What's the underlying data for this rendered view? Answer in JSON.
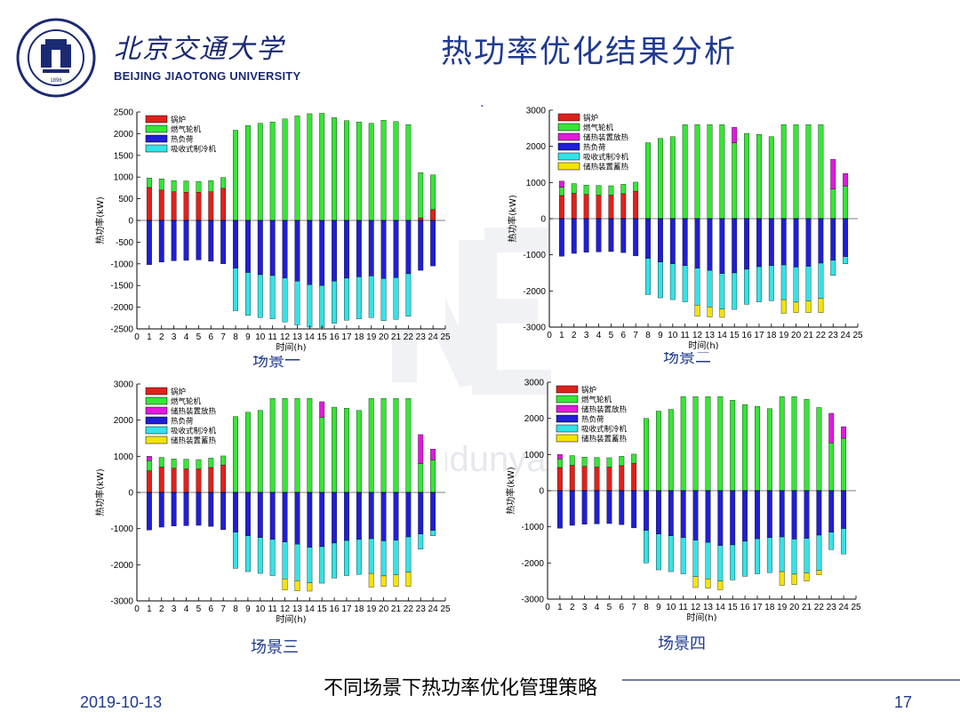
{
  "header": {
    "university_cn": "北京交通大学",
    "university_en": "BEIJING JIAOTONG UNIVERSITY",
    "logo_year": "1896",
    "title": "热功率优化结果分析",
    "dot": "."
  },
  "watermark": {
    "text": "www.bjudunyan.com"
  },
  "footer": {
    "caption": "不同场景下热功率优化管理策略",
    "date": "2019-10-13",
    "page": "17"
  },
  "colors": {
    "boiler": "#e0211b",
    "gas_turbine": "#36e636",
    "storage_release": "#e01adf",
    "heat_load": "#1f1fd4",
    "absorption_chiller": "#33e3e8",
    "storage_charge": "#f5e400",
    "title_blue": "#1f3a8f"
  },
  "chart_data": [
    {
      "id": "scenario1",
      "type": "bar",
      "caption": "场景一",
      "xlabel": "时间(h)",
      "ylabel": "热功率(kW)",
      "xlim": [
        0,
        25
      ],
      "ylim": [
        -2500,
        2500
      ],
      "yticks": [
        -2500,
        -2000,
        -1500,
        -1000,
        -500,
        0,
        500,
        1000,
        1500,
        2000,
        2500
      ],
      "xticks": [
        0,
        1,
        2,
        3,
        4,
        5,
        6,
        7,
        8,
        9,
        10,
        11,
        12,
        13,
        14,
        15,
        16,
        17,
        18,
        19,
        20,
        21,
        22,
        23,
        24,
        25
      ],
      "legend": [
        "锅炉",
        "燃气轮机",
        "热负荷",
        "吸收式制冷机"
      ],
      "legend_keys": [
        "boiler",
        "gas_turbine",
        "heat_load",
        "absorption_chiller"
      ],
      "hours": [
        1,
        2,
        3,
        4,
        5,
        6,
        7,
        8,
        9,
        10,
        11,
        12,
        13,
        14,
        15,
        16,
        17,
        18,
        19,
        20,
        21,
        22,
        23,
        24
      ],
      "series": [
        {
          "name": "锅炉",
          "key": "boiler",
          "sign": 1,
          "values": [
            760,
            700,
            660,
            650,
            650,
            660,
            740,
            0,
            0,
            0,
            0,
            0,
            0,
            0,
            0,
            0,
            0,
            0,
            0,
            0,
            0,
            0,
            60,
            250
          ]
        },
        {
          "name": "燃气轮机",
          "key": "gas_turbine",
          "sign": 1,
          "values": [
            220,
            260,
            260,
            260,
            250,
            260,
            250,
            2080,
            2190,
            2240,
            2270,
            2340,
            2410,
            2460,
            2470,
            2370,
            2300,
            2270,
            2240,
            2310,
            2280,
            2210,
            1040,
            800
          ]
        },
        {
          "name": "热负荷",
          "key": "heat_load",
          "sign": -1,
          "values": [
            1020,
            960,
            930,
            920,
            910,
            940,
            1000,
            1100,
            1200,
            1250,
            1270,
            1330,
            1400,
            1480,
            1500,
            1400,
            1330,
            1300,
            1280,
            1340,
            1320,
            1230,
            1150,
            1050
          ]
        },
        {
          "name": "吸收式制冷机",
          "key": "absorption_chiller",
          "sign": -1,
          "values": [
            0,
            0,
            0,
            0,
            0,
            0,
            0,
            980,
            990,
            990,
            1000,
            1010,
            1010,
            980,
            970,
            970,
            970,
            970,
            960,
            970,
            960,
            980,
            0,
            0
          ]
        }
      ]
    },
    {
      "id": "scenario2",
      "type": "bar",
      "caption": "场景二",
      "xlabel": "时间(h)",
      "ylabel": "热功率(kW)",
      "xlim": [
        0,
        25
      ],
      "ylim": [
        -3000,
        3000
      ],
      "yticks": [
        -3000,
        -2000,
        -1000,
        0,
        1000,
        2000,
        3000
      ],
      "xticks": [
        0,
        1,
        2,
        3,
        4,
        5,
        6,
        7,
        8,
        9,
        10,
        11,
        12,
        13,
        14,
        15,
        16,
        17,
        18,
        19,
        20,
        21,
        22,
        23,
        24,
        25
      ],
      "legend": [
        "锅炉",
        "燃气轮机",
        "储热装置放热",
        "热负荷",
        "吸收式制冷机",
        "储热装置蓄热"
      ],
      "legend_keys": [
        "boiler",
        "gas_turbine",
        "storage_release",
        "heat_load",
        "absorption_chiller",
        "storage_charge"
      ],
      "hours": [
        1,
        2,
        3,
        4,
        5,
        6,
        7,
        8,
        9,
        10,
        11,
        12,
        13,
        14,
        15,
        16,
        17,
        18,
        19,
        20,
        21,
        22,
        23,
        24
      ],
      "series": [
        {
          "name": "锅炉",
          "key": "boiler",
          "sign": 1,
          "values": [
            640,
            700,
            670,
            650,
            650,
            690,
            760,
            0,
            0,
            0,
            0,
            0,
            0,
            0,
            0,
            0,
            0,
            0,
            0,
            0,
            0,
            0,
            0,
            0
          ]
        },
        {
          "name": "燃气轮机",
          "key": "gas_turbine",
          "sign": 1,
          "values": [
            230,
            270,
            260,
            270,
            260,
            260,
            250,
            2100,
            2220,
            2270,
            2600,
            2600,
            2600,
            2600,
            2100,
            2360,
            2330,
            2270,
            2600,
            2600,
            2600,
            2600,
            820,
            900
          ]
        },
        {
          "name": "储热装置放热",
          "key": "storage_release",
          "sign": 1,
          "values": [
            170,
            0,
            0,
            0,
            0,
            0,
            0,
            0,
            0,
            0,
            0,
            0,
            0,
            0,
            430,
            0,
            0,
            0,
            0,
            0,
            0,
            0,
            820,
            350
          ]
        },
        {
          "name": "热负荷",
          "key": "heat_load",
          "sign": -1,
          "values": [
            1040,
            960,
            930,
            920,
            910,
            940,
            1030,
            1100,
            1200,
            1250,
            1300,
            1370,
            1430,
            1520,
            1500,
            1400,
            1330,
            1300,
            1280,
            1340,
            1320,
            1230,
            1150,
            1050
          ]
        },
        {
          "name": "吸收式制冷机",
          "key": "absorption_chiller",
          "sign": -1,
          "values": [
            0,
            0,
            0,
            0,
            0,
            0,
            0,
            1000,
            990,
            990,
            1000,
            1020,
            1010,
            980,
            1010,
            970,
            970,
            970,
            960,
            970,
            960,
            980,
            420,
            200
          ]
        },
        {
          "name": "储热装置蓄热",
          "key": "storage_charge",
          "sign": -1,
          "values": [
            0,
            0,
            0,
            0,
            0,
            0,
            0,
            0,
            0,
            0,
            0,
            310,
            280,
            230,
            0,
            0,
            0,
            0,
            380,
            290,
            320,
            390,
            0,
            0
          ]
        }
      ]
    },
    {
      "id": "scenario3",
      "type": "bar",
      "caption": "场景三",
      "xlabel": "时间(h)",
      "ylabel": "热功率(kW)",
      "xlim": [
        0,
        25
      ],
      "ylim": [
        -3000,
        3000
      ],
      "yticks": [
        -3000,
        -2000,
        -1000,
        0,
        1000,
        2000,
        3000
      ],
      "xticks": [
        0,
        1,
        2,
        3,
        4,
        5,
        6,
        7,
        8,
        9,
        10,
        11,
        12,
        13,
        14,
        15,
        16,
        17,
        18,
        19,
        20,
        21,
        22,
        23,
        24,
        25
      ],
      "legend": [
        "锅炉",
        "燃气轮机",
        "储热装置放热",
        "热负荷",
        "吸收式制冷机",
        "储热装置蓄热"
      ],
      "legend_keys": [
        "boiler",
        "gas_turbine",
        "storage_release",
        "heat_load",
        "absorption_chiller",
        "storage_charge"
      ],
      "hours": [
        1,
        2,
        3,
        4,
        5,
        6,
        7,
        8,
        9,
        10,
        11,
        12,
        13,
        14,
        15,
        16,
        17,
        18,
        19,
        20,
        21,
        22,
        23,
        24
      ],
      "series": [
        {
          "name": "锅炉",
          "key": "boiler",
          "sign": 1,
          "values": [
            600,
            700,
            670,
            650,
            650,
            690,
            760,
            0,
            0,
            0,
            0,
            0,
            0,
            0,
            0,
            0,
            0,
            0,
            0,
            0,
            0,
            0,
            0,
            0
          ]
        },
        {
          "name": "燃气轮机",
          "key": "gas_turbine",
          "sign": 1,
          "values": [
            280,
            270,
            260,
            270,
            260,
            260,
            250,
            2100,
            2220,
            2270,
            2600,
            2600,
            2600,
            2600,
            2080,
            2360,
            2330,
            2270,
            2600,
            2600,
            2600,
            2600,
            800,
            900
          ]
        },
        {
          "name": "储热装置放热",
          "key": "storage_release",
          "sign": 1,
          "values": [
            120,
            0,
            0,
            0,
            0,
            0,
            0,
            0,
            0,
            0,
            0,
            0,
            0,
            0,
            430,
            0,
            0,
            0,
            0,
            0,
            0,
            0,
            800,
            300
          ]
        },
        {
          "name": "热负荷",
          "key": "heat_load",
          "sign": -1,
          "values": [
            1040,
            960,
            930,
            920,
            910,
            940,
            1030,
            1100,
            1200,
            1250,
            1300,
            1370,
            1430,
            1520,
            1500,
            1400,
            1330,
            1300,
            1280,
            1340,
            1320,
            1230,
            1150,
            1050
          ]
        },
        {
          "name": "吸收式制冷机",
          "key": "absorption_chiller",
          "sign": -1,
          "values": [
            0,
            0,
            0,
            0,
            0,
            0,
            0,
            1000,
            990,
            990,
            1000,
            1020,
            1010,
            980,
            1010,
            970,
            970,
            970,
            960,
            970,
            960,
            980,
            420,
            150
          ]
        },
        {
          "name": "储热装置蓄热",
          "key": "storage_charge",
          "sign": -1,
          "values": [
            0,
            0,
            0,
            0,
            0,
            0,
            0,
            0,
            0,
            0,
            0,
            310,
            280,
            230,
            0,
            0,
            0,
            0,
            380,
            290,
            320,
            390,
            0,
            0
          ]
        }
      ]
    },
    {
      "id": "scenario4",
      "type": "bar",
      "caption": "场景四",
      "xlabel": "时间(h)",
      "ylabel": "热功率(kW)",
      "xlim": [
        0,
        25
      ],
      "ylim": [
        -3000,
        3000
      ],
      "yticks": [
        -3000,
        -2000,
        -1000,
        0,
        1000,
        2000,
        3000
      ],
      "xticks": [
        0,
        1,
        2,
        3,
        4,
        5,
        6,
        7,
        8,
        9,
        10,
        11,
        12,
        13,
        14,
        15,
        16,
        17,
        18,
        19,
        20,
        21,
        22,
        23,
        24,
        25
      ],
      "legend": [
        "锅炉",
        "燃气轮机",
        "储热装置放热",
        "热负荷",
        "吸收式制冷机",
        "储热装置蓄热"
      ],
      "legend_keys": [
        "boiler",
        "gas_turbine",
        "storage_release",
        "heat_load",
        "absorption_chiller",
        "storage_charge"
      ],
      "hours": [
        1,
        2,
        3,
        4,
        5,
        6,
        7,
        8,
        9,
        10,
        11,
        12,
        13,
        14,
        15,
        16,
        17,
        18,
        19,
        20,
        21,
        22,
        23,
        24
      ],
      "series": [
        {
          "name": "锅炉",
          "key": "boiler",
          "sign": 1,
          "values": [
            640,
            700,
            670,
            650,
            650,
            690,
            760,
            0,
            0,
            0,
            0,
            0,
            0,
            0,
            0,
            0,
            0,
            0,
            0,
            0,
            0,
            0,
            0,
            0
          ]
        },
        {
          "name": "燃气轮机",
          "key": "gas_turbine",
          "sign": 1,
          "values": [
            240,
            270,
            260,
            270,
            260,
            260,
            250,
            2000,
            2200,
            2250,
            2600,
            2600,
            2600,
            2600,
            2500,
            2380,
            2330,
            2270,
            2600,
            2600,
            2530,
            2300,
            1320,
            1450
          ]
        },
        {
          "name": "储热装置放热",
          "key": "storage_release",
          "sign": 1,
          "values": [
            120,
            0,
            0,
            0,
            0,
            0,
            0,
            0,
            0,
            0,
            0,
            0,
            0,
            0,
            0,
            0,
            0,
            0,
            0,
            0,
            0,
            0,
            820,
            320
          ]
        },
        {
          "name": "热负荷",
          "key": "heat_load",
          "sign": -1,
          "values": [
            1040,
            960,
            930,
            920,
            910,
            940,
            1030,
            1100,
            1200,
            1250,
            1300,
            1370,
            1430,
            1520,
            1500,
            1400,
            1330,
            1300,
            1280,
            1340,
            1320,
            1230,
            1150,
            1050
          ]
        },
        {
          "name": "吸收式制冷机",
          "key": "absorption_chiller",
          "sign": -1,
          "values": [
            0,
            0,
            0,
            0,
            0,
            0,
            0,
            900,
            990,
            990,
            1000,
            1010,
            1010,
            980,
            970,
            970,
            970,
            970,
            960,
            970,
            960,
            980,
            480,
            700
          ]
        },
        {
          "name": "储热装置蓄热",
          "key": "storage_charge",
          "sign": -1,
          "values": [
            0,
            0,
            0,
            0,
            0,
            0,
            0,
            0,
            0,
            0,
            0,
            300,
            260,
            240,
            0,
            0,
            0,
            0,
            380,
            290,
            220,
            120,
            0,
            0
          ]
        }
      ]
    }
  ]
}
